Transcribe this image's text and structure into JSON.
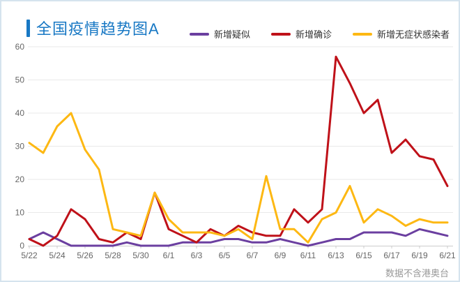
{
  "title": {
    "text": "全国疫情趋势图A"
  },
  "legend": {
    "items": [
      {
        "label": "新增疑似"
      },
      {
        "label": "新增确诊"
      },
      {
        "label": "新增无症状感染者"
      }
    ]
  },
  "footer": {
    "note": "数据不含港奥台"
  },
  "colors": {
    "title": "#1878c4",
    "suspected": "#6b3fa0",
    "confirmed": "#bf1119",
    "asymptomatic": "#fdb813",
    "grid": "#e9e9e9",
    "axis_line": "#cccccc",
    "axis_text": "#666666",
    "border": "#d5e3ee"
  },
  "chart_data": {
    "type": "line",
    "title": "全国疫情趋势图A",
    "categories": [
      "5/22",
      "5/23",
      "5/24",
      "5/25",
      "5/26",
      "5/27",
      "5/28",
      "5/29",
      "5/30",
      "5/31",
      "6/1",
      "6/2",
      "6/3",
      "6/4",
      "6/5",
      "6/6",
      "6/7",
      "6/8",
      "6/9",
      "6/10",
      "6/11",
      "6/12",
      "6/13",
      "6/14",
      "6/15",
      "6/16",
      "6/17",
      "6/18",
      "6/19",
      "6/20",
      "6/21"
    ],
    "x_label_interval": 2,
    "series": [
      {
        "name": "新增疑似",
        "key": "new-suspected",
        "color": "#6b3fa0",
        "values": [
          2,
          4,
          2,
          0,
          0,
          0,
          0,
          1,
          0,
          0,
          0,
          1,
          1,
          1,
          2,
          2,
          1,
          1,
          2,
          1,
          0,
          1,
          2,
          2,
          4,
          4,
          4,
          3,
          5,
          4,
          3
        ]
      },
      {
        "name": "新增确诊",
        "key": "new-confirmed",
        "color": "#bf1119",
        "values": [
          2,
          0,
          3,
          11,
          8,
          2,
          1,
          4,
          2,
          16,
          5,
          3,
          1,
          5,
          3,
          6,
          4,
          3,
          3,
          11,
          7,
          11,
          57,
          49,
          40,
          44,
          28,
          32,
          27,
          26,
          18
        ]
      },
      {
        "name": "新增无症状感染者",
        "key": "new-asymptomatic",
        "color": "#fdb813",
        "values": [
          31,
          28,
          36,
          40,
          29,
          23,
          5,
          4,
          3,
          16,
          8,
          4,
          4,
          4,
          3,
          5,
          2,
          21,
          5,
          5,
          1,
          8,
          10,
          18,
          7,
          11,
          9,
          6,
          8,
          7,
          7
        ]
      }
    ],
    "xlabel": "",
    "ylabel": "",
    "ylim": [
      0,
      60
    ],
    "ytick_step": 10,
    "grid": true,
    "legend_position": "top-right",
    "note": "数据不含港奥台"
  }
}
